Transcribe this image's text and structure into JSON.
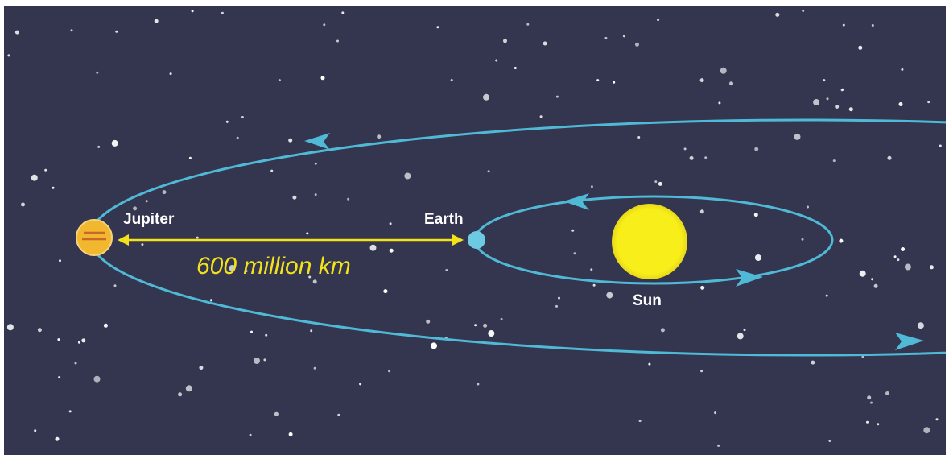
{
  "bodies": [
    {
      "label": "Jupiter"
    },
    {
      "label": "Earth"
    },
    {
      "label": "Sun"
    }
  ],
  "distance": "600 million km"
}
